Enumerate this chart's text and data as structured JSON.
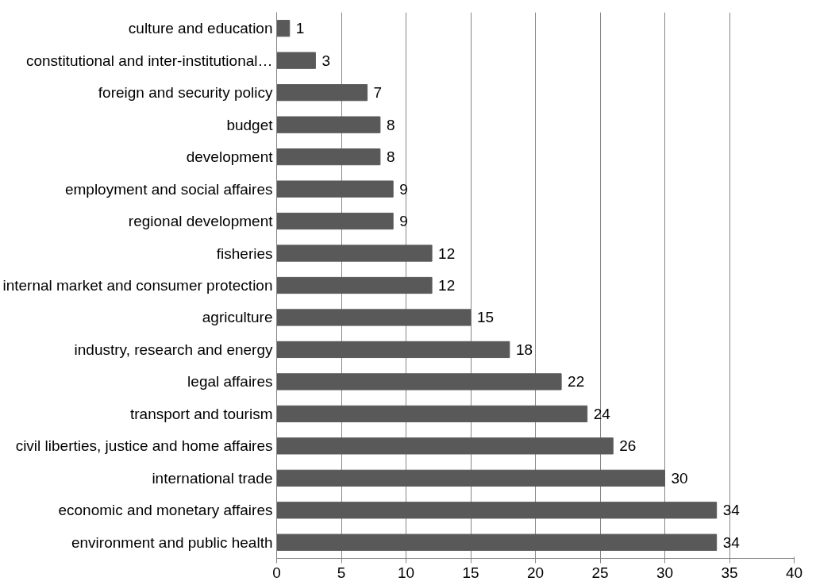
{
  "chart_data": {
    "type": "bar",
    "orientation": "horizontal",
    "categories": [
      "culture and education",
      "constitutional and inter-institutional…",
      "foreign and security policy",
      "budget",
      "development",
      "employment and social affaires",
      "regional development",
      "fisheries",
      "internal market and consumer protection",
      "agriculture",
      "industry, research and energy",
      "legal affaires",
      "transport and tourism",
      "civil liberties, justice and home affaires",
      "international trade",
      "economic and monetary affaires",
      "environment and public health"
    ],
    "values": [
      1,
      3,
      7,
      8,
      8,
      9,
      9,
      12,
      12,
      15,
      18,
      22,
      24,
      26,
      30,
      34,
      34
    ],
    "color": "#595959",
    "xlim": [
      0,
      40
    ],
    "xticks": [
      0,
      5,
      10,
      15,
      20,
      25,
      30,
      35,
      40
    ],
    "grid": "x",
    "data_labels": true
  }
}
